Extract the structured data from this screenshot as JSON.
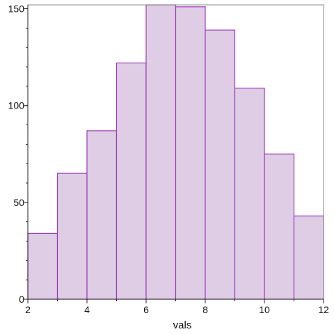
{
  "chart_data": {
    "type": "bar",
    "histogram": true,
    "bins": [
      {
        "x0": 2,
        "x1": 3,
        "count": 34
      },
      {
        "x0": 3,
        "x1": 4,
        "count": 65
      },
      {
        "x0": 4,
        "x1": 5,
        "count": 87
      },
      {
        "x0": 5,
        "x1": 6,
        "count": 122
      },
      {
        "x0": 6,
        "x1": 7,
        "count": 152
      },
      {
        "x0": 7,
        "x1": 8,
        "count": 151
      },
      {
        "x0": 8,
        "x1": 9,
        "count": 139
      },
      {
        "x0": 9,
        "x1": 10,
        "count": 109
      },
      {
        "x0": 10,
        "x1": 11,
        "count": 75
      },
      {
        "x0": 11,
        "x1": 12,
        "count": 43
      }
    ],
    "xlabel": "vals",
    "ylabel": "",
    "title": "",
    "xlim": [
      2,
      12
    ],
    "ylim": [
      0,
      152
    ],
    "xticks": [
      2,
      4,
      6,
      8,
      10,
      12
    ],
    "yticks": [
      0,
      50,
      100,
      150
    ],
    "yminor_step": 10,
    "grid": false,
    "legend": "none",
    "colors": {
      "bar_fill": "#dfcde6",
      "bar_edge": "#9a3bb5"
    }
  }
}
